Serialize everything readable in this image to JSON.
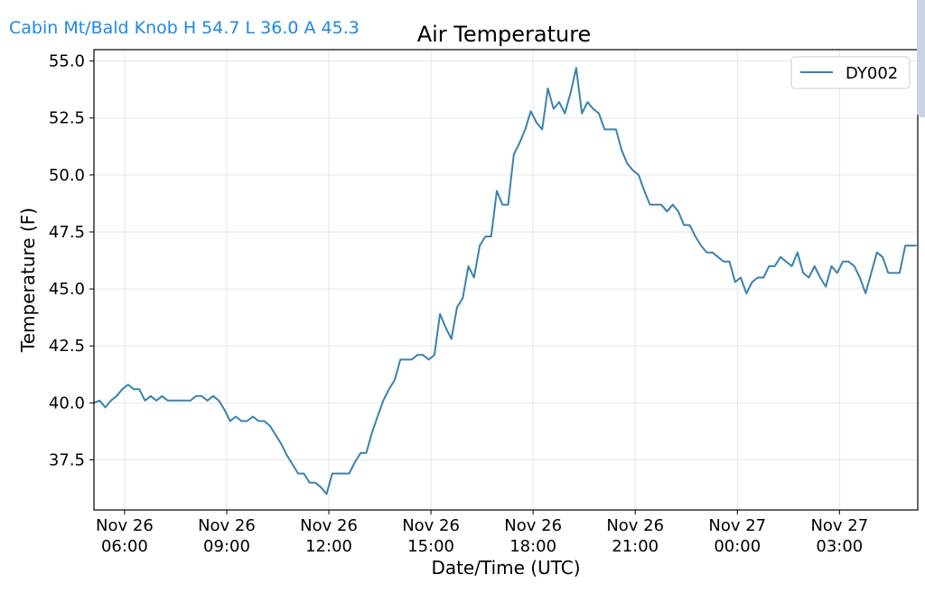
{
  "header": {
    "station_summary": "Cabin Mt/Bald Knob H 54.7 L 36.0 A 45.3"
  },
  "colors": {
    "header_text": "#1e88e5",
    "series_line": "#3a82b0",
    "grid": "#e6e6e6"
  },
  "chart_data": {
    "type": "line",
    "title": "Air Temperature",
    "xlabel": "Date/Time (UTC)",
    "ylabel": "Temperature (F)",
    "x_unit": "hours",
    "xlim": [
      "2023-11-26T05:06",
      "2023-11-27T05:18"
    ],
    "ylim": [
      35.3,
      55.5
    ],
    "grid": true,
    "legend": "top-right",
    "x_ticks": [
      {
        "x": "2023-11-26T06:00",
        "line1": "Nov 26",
        "line2": "06:00"
      },
      {
        "x": "2023-11-26T09:00",
        "line1": "Nov 26",
        "line2": "09:00"
      },
      {
        "x": "2023-11-26T12:00",
        "line1": "Nov 26",
        "line2": "12:00"
      },
      {
        "x": "2023-11-26T15:00",
        "line1": "Nov 26",
        "line2": "15:00"
      },
      {
        "x": "2023-11-26T18:00",
        "line1": "Nov 26",
        "line2": "18:00"
      },
      {
        "x": "2023-11-26T21:00",
        "line1": "Nov 26",
        "line2": "21:00"
      },
      {
        "x": "2023-11-27T00:00",
        "line1": "Nov 27",
        "line2": "00:00"
      },
      {
        "x": "2023-11-27T03:00",
        "line1": "Nov 27",
        "line2": "03:00"
      }
    ],
    "y_ticks": [
      {
        "y": 37.5,
        "label": "37.5"
      },
      {
        "y": 40.0,
        "label": "40.0"
      },
      {
        "y": 42.5,
        "label": "42.5"
      },
      {
        "y": 45.0,
        "label": "45.0"
      },
      {
        "y": 47.5,
        "label": "47.5"
      },
      {
        "y": 50.0,
        "label": "50.0"
      },
      {
        "y": 52.5,
        "label": "52.5"
      },
      {
        "y": 55.0,
        "label": "55.0"
      }
    ],
    "series": [
      {
        "name": "DY002",
        "points": [
          [
            "2023-11-26T05:06",
            40.0
          ],
          [
            "2023-11-26T05:16",
            40.1
          ],
          [
            "2023-11-26T05:26",
            39.8
          ],
          [
            "2023-11-26T05:36",
            40.1
          ],
          [
            "2023-11-26T05:46",
            40.3
          ],
          [
            "2023-11-26T05:56",
            40.6
          ],
          [
            "2023-11-26T06:06",
            40.8
          ],
          [
            "2023-11-26T06:16",
            40.6
          ],
          [
            "2023-11-26T06:26",
            40.6
          ],
          [
            "2023-11-26T06:36",
            40.1
          ],
          [
            "2023-11-26T06:46",
            40.3
          ],
          [
            "2023-11-26T06:56",
            40.1
          ],
          [
            "2023-11-26T07:06",
            40.3
          ],
          [
            "2023-11-26T07:16",
            40.1
          ],
          [
            "2023-11-26T07:26",
            40.1
          ],
          [
            "2023-11-26T07:36",
            40.1
          ],
          [
            "2023-11-26T07:46",
            40.1
          ],
          [
            "2023-11-26T07:56",
            40.1
          ],
          [
            "2023-11-26T08:06",
            40.3
          ],
          [
            "2023-11-26T08:16",
            40.3
          ],
          [
            "2023-11-26T08:26",
            40.1
          ],
          [
            "2023-11-26T08:36",
            40.3
          ],
          [
            "2023-11-26T08:46",
            40.1
          ],
          [
            "2023-11-26T08:56",
            39.7
          ],
          [
            "2023-11-26T09:06",
            39.2
          ],
          [
            "2023-11-26T09:16",
            39.4
          ],
          [
            "2023-11-26T09:26",
            39.2
          ],
          [
            "2023-11-26T09:36",
            39.2
          ],
          [
            "2023-11-26T09:46",
            39.4
          ],
          [
            "2023-11-26T09:56",
            39.2
          ],
          [
            "2023-11-26T10:06",
            39.2
          ],
          [
            "2023-11-26T10:16",
            39.0
          ],
          [
            "2023-11-26T10:26",
            38.6
          ],
          [
            "2023-11-26T10:36",
            38.2
          ],
          [
            "2023-11-26T10:46",
            37.7
          ],
          [
            "2023-11-26T10:56",
            37.3
          ],
          [
            "2023-11-26T11:06",
            36.9
          ],
          [
            "2023-11-26T11:16",
            36.9
          ],
          [
            "2023-11-26T11:26",
            36.5
          ],
          [
            "2023-11-26T11:36",
            36.5
          ],
          [
            "2023-11-26T11:46",
            36.3
          ],
          [
            "2023-11-26T11:56",
            36.0
          ],
          [
            "2023-11-26T12:06",
            36.9
          ],
          [
            "2023-11-26T12:16",
            36.9
          ],
          [
            "2023-11-26T12:26",
            36.9
          ],
          [
            "2023-11-26T12:36",
            36.9
          ],
          [
            "2023-11-26T12:46",
            37.4
          ],
          [
            "2023-11-26T12:56",
            37.8
          ],
          [
            "2023-11-26T13:06",
            37.8
          ],
          [
            "2023-11-26T13:16",
            38.7
          ],
          [
            "2023-11-26T13:26",
            39.4
          ],
          [
            "2023-11-26T13:36",
            40.1
          ],
          [
            "2023-11-26T13:46",
            40.6
          ],
          [
            "2023-11-26T13:56",
            41.0
          ],
          [
            "2023-11-26T14:06",
            41.9
          ],
          [
            "2023-11-26T14:16",
            41.9
          ],
          [
            "2023-11-26T14:26",
            41.9
          ],
          [
            "2023-11-26T14:36",
            42.1
          ],
          [
            "2023-11-26T14:46",
            42.1
          ],
          [
            "2023-11-26T14:56",
            41.9
          ],
          [
            "2023-11-26T15:06",
            42.1
          ],
          [
            "2023-11-26T15:16",
            43.9
          ],
          [
            "2023-11-26T15:26",
            43.3
          ],
          [
            "2023-11-26T15:36",
            42.8
          ],
          [
            "2023-11-26T15:46",
            44.2
          ],
          [
            "2023-11-26T15:56",
            44.6
          ],
          [
            "2023-11-26T16:06",
            46.0
          ],
          [
            "2023-11-26T16:16",
            45.5
          ],
          [
            "2023-11-26T16:26",
            46.9
          ],
          [
            "2023-11-26T16:36",
            47.3
          ],
          [
            "2023-11-26T16:46",
            47.3
          ],
          [
            "2023-11-26T16:56",
            49.3
          ],
          [
            "2023-11-26T17:06",
            48.7
          ],
          [
            "2023-11-26T17:16",
            48.7
          ],
          [
            "2023-11-26T17:26",
            50.9
          ],
          [
            "2023-11-26T17:36",
            51.4
          ],
          [
            "2023-11-26T17:46",
            52.0
          ],
          [
            "2023-11-26T17:56",
            52.8
          ],
          [
            "2023-11-26T18:06",
            52.3
          ],
          [
            "2023-11-26T18:16",
            52.0
          ],
          [
            "2023-11-26T18:26",
            53.8
          ],
          [
            "2023-11-26T18:36",
            52.9
          ],
          [
            "2023-11-26T18:46",
            53.2
          ],
          [
            "2023-11-26T18:56",
            52.7
          ],
          [
            "2023-11-26T19:06",
            53.6
          ],
          [
            "2023-11-26T19:16",
            54.7
          ],
          [
            "2023-11-26T19:26",
            52.7
          ],
          [
            "2023-11-26T19:36",
            53.2
          ],
          [
            "2023-11-26T19:46",
            52.9
          ],
          [
            "2023-11-26T19:56",
            52.7
          ],
          [
            "2023-11-26T20:06",
            52.0
          ],
          [
            "2023-11-26T20:16",
            52.0
          ],
          [
            "2023-11-26T20:26",
            52.0
          ],
          [
            "2023-11-26T20:36",
            51.1
          ],
          [
            "2023-11-26T20:46",
            50.5
          ],
          [
            "2023-11-26T20:56",
            50.2
          ],
          [
            "2023-11-26T21:06",
            50.0
          ],
          [
            "2023-11-26T21:16",
            49.3
          ],
          [
            "2023-11-26T21:26",
            48.7
          ],
          [
            "2023-11-26T21:36",
            48.7
          ],
          [
            "2023-11-26T21:46",
            48.7
          ],
          [
            "2023-11-26T21:56",
            48.4
          ],
          [
            "2023-11-26T22:06",
            48.7
          ],
          [
            "2023-11-26T22:16",
            48.4
          ],
          [
            "2023-11-26T22:26",
            47.8
          ],
          [
            "2023-11-26T22:36",
            47.8
          ],
          [
            "2023-11-26T22:46",
            47.3
          ],
          [
            "2023-11-26T22:56",
            46.9
          ],
          [
            "2023-11-26T23:06",
            46.6
          ],
          [
            "2023-11-26T23:16",
            46.6
          ],
          [
            "2023-11-26T23:26",
            46.4
          ],
          [
            "2023-11-26T23:36",
            46.2
          ],
          [
            "2023-11-26T23:46",
            46.2
          ],
          [
            "2023-11-26T23:56",
            45.3
          ],
          [
            "2023-11-27T00:06",
            45.5
          ],
          [
            "2023-11-27T00:16",
            44.8
          ],
          [
            "2023-11-27T00:26",
            45.3
          ],
          [
            "2023-11-27T00:36",
            45.5
          ],
          [
            "2023-11-27T00:46",
            45.5
          ],
          [
            "2023-11-27T00:56",
            46.0
          ],
          [
            "2023-11-27T01:06",
            46.0
          ],
          [
            "2023-11-27T01:16",
            46.4
          ],
          [
            "2023-11-27T01:26",
            46.2
          ],
          [
            "2023-11-27T01:36",
            46.0
          ],
          [
            "2023-11-27T01:46",
            46.6
          ],
          [
            "2023-11-27T01:56",
            45.7
          ],
          [
            "2023-11-27T02:06",
            45.5
          ],
          [
            "2023-11-27T02:16",
            46.0
          ],
          [
            "2023-11-27T02:26",
            45.5
          ],
          [
            "2023-11-27T02:36",
            45.1
          ],
          [
            "2023-11-27T02:46",
            46.0
          ],
          [
            "2023-11-27T02:56",
            45.7
          ],
          [
            "2023-11-27T03:06",
            46.2
          ],
          [
            "2023-11-27T03:16",
            46.2
          ],
          [
            "2023-11-27T03:26",
            46.0
          ],
          [
            "2023-11-27T03:36",
            45.5
          ],
          [
            "2023-11-27T03:46",
            44.8
          ],
          [
            "2023-11-27T03:56",
            45.7
          ],
          [
            "2023-11-27T04:06",
            46.6
          ],
          [
            "2023-11-27T04:16",
            46.4
          ],
          [
            "2023-11-27T04:26",
            45.7
          ],
          [
            "2023-11-27T04:36",
            45.7
          ],
          [
            "2023-11-27T04:46",
            45.7
          ],
          [
            "2023-11-27T04:56",
            46.9
          ],
          [
            "2023-11-27T05:06",
            46.9
          ],
          [
            "2023-11-27T05:16",
            46.9
          ]
        ]
      }
    ]
  }
}
